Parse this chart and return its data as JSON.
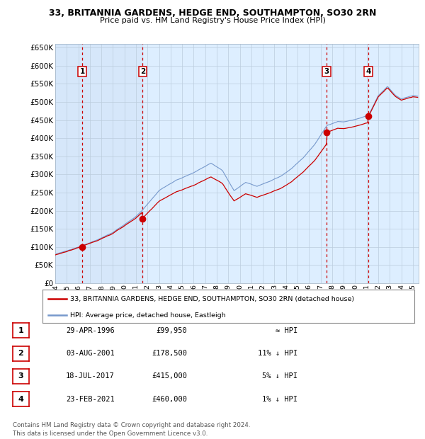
{
  "title_line1": "33, BRITANNIA GARDENS, HEDGE END, SOUTHAMPTON, SO30 2RN",
  "title_line2": "Price paid vs. HM Land Registry's House Price Index (HPI)",
  "sale_dates_num": [
    1996.33,
    2001.58,
    2017.54,
    2021.15
  ],
  "sale_prices": [
    99950,
    178500,
    415000,
    460000
  ],
  "sale_labels": [
    "1",
    "2",
    "3",
    "4"
  ],
  "red_line_color": "#cc0000",
  "blue_line_color": "#7799cc",
  "background_color": "#ddeeff",
  "grid_color": "#bbccdd",
  "dashed_line_color": "#cc0000",
  "ylim": [
    0,
    660000
  ],
  "ytick_step": 50000,
  "xlim_start": 1994,
  "xlim_end": 2025.5,
  "legend_label_red": "33, BRITANNIA GARDENS, HEDGE END, SOUTHAMPTON, SO30 2RN (detached house)",
  "legend_label_blue": "HPI: Average price, detached house, Eastleigh",
  "table_rows": [
    {
      "num": "1",
      "date": "29-APR-1996",
      "price": "£99,950",
      "rel": "≈ HPI"
    },
    {
      "num": "2",
      "date": "03-AUG-2001",
      "price": "£178,500",
      "rel": "11% ↓ HPI"
    },
    {
      "num": "3",
      "date": "18-JUL-2017",
      "price": "£415,000",
      "rel": "5% ↓ HPI"
    },
    {
      "num": "4",
      "date": "23-FEB-2021",
      "price": "£460,000",
      "rel": "1% ↓ HPI"
    }
  ],
  "footer": "Contains HM Land Registry data © Crown copyright and database right 2024.\nThis data is licensed under the Open Government Licence v3.0."
}
